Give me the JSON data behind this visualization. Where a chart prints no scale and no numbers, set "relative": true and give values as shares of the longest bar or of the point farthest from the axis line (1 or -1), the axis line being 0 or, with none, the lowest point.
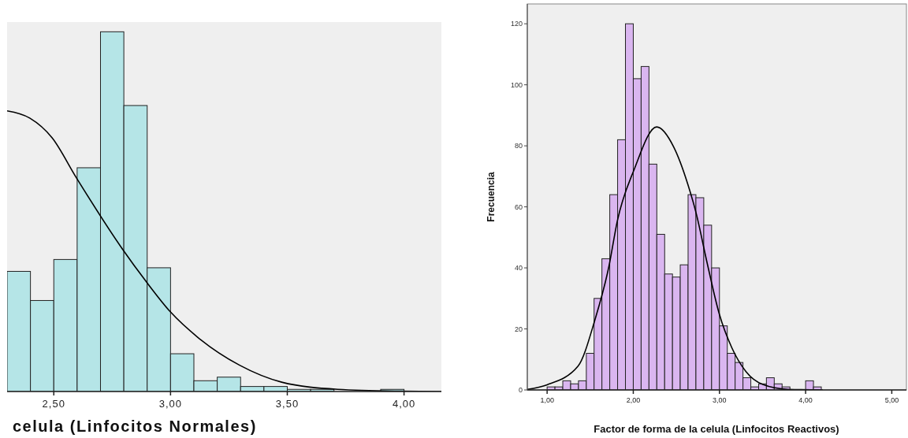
{
  "chart_data": [
    {
      "type": "histogram",
      "relative": true,
      "xlabel": "celula (Linfocitos Normales)",
      "bins": [
        2.3,
        2.4,
        2.5,
        2.6,
        2.7,
        2.8,
        2.9,
        3.0,
        3.1,
        3.2,
        3.3,
        3.4,
        3.5,
        3.6,
        3.7,
        3.8,
        3.9,
        4.0
      ],
      "xlim": [
        2.3,
        4.16
      ],
      "xticks": [
        {
          "value": 2.5,
          "label": "2,50"
        },
        {
          "value": 3.0,
          "label": "3,00"
        },
        {
          "value": 3.5,
          "label": "3,50"
        },
        {
          "value": 4.0,
          "label": "4,00"
        }
      ],
      "tick_labels": "x",
      "series": [
        {
          "color": "#b5e5e7",
          "values": [
            0.334,
            0.253,
            0.367,
            0.622,
            1.0,
            0.795,
            0.344,
            0.105,
            0.03,
            0.04,
            0.014,
            0.014,
            0.006,
            0.006,
            0,
            0,
            0.006
          ]
        },
        {
          "type": "line",
          "color": "#000000",
          "x": [
            2.3,
            2.397,
            2.493,
            2.595,
            2.793,
            2.894,
            3.0,
            3.116,
            3.296,
            3.476,
            3.716,
            3.96,
            4.16
          ],
          "values": [
            0.78,
            0.76,
            0.705,
            0.596,
            0.397,
            0.307,
            0.221,
            0.151,
            0.073,
            0.026,
            0.006,
            0.001,
            0
          ]
        }
      ]
    },
    {
      "type": "histogram",
      "xlabel": "Factor de forma de la celula (Linfocitos Reactivos)",
      "ylabel": "Frecuencia",
      "bins": [
        1,
        1.091,
        1.182,
        1.273,
        1.364,
        1.455,
        1.545,
        1.636,
        1.727,
        1.818,
        1.909,
        2,
        2.091,
        2.182,
        2.273,
        2.364,
        2.455,
        2.545,
        2.636,
        2.727,
        2.818,
        2.909,
        3,
        3.091,
        3.182,
        3.273,
        3.364,
        3.455,
        3.545,
        3.636,
        3.727,
        3.818,
        3.909,
        4,
        4.091,
        4.182
      ],
      "xlim": [
        0.77,
        5.17
      ],
      "xticks": [
        {
          "value": 1,
          "label": "1,00"
        },
        {
          "value": 2,
          "label": "2,00"
        },
        {
          "value": 3,
          "label": "3,00"
        },
        {
          "value": 4,
          "label": "4,00"
        },
        {
          "value": 5,
          "label": "5,00"
        }
      ],
      "ylim": [
        0,
        126.5
      ],
      "yticks": [
        0,
        20,
        40,
        60,
        80,
        100,
        120
      ],
      "series": [
        {
          "color": "#dab6f0",
          "values": [
            1,
            1,
            3,
            2,
            3,
            12,
            30,
            43,
            64,
            82,
            120,
            102,
            106,
            74,
            51,
            38,
            37,
            41,
            64,
            63,
            54,
            40,
            21,
            12,
            9,
            4,
            1,
            2,
            4,
            2,
            1,
            0,
            0,
            3,
            1
          ]
        },
        {
          "type": "line",
          "color": "#000000",
          "x": [
            0.772,
            1.0,
            1.359,
            1.555,
            1.718,
            1.815,
            2.011,
            2.272,
            2.468,
            2.631,
            2.729,
            2.858,
            2.998,
            3.144,
            3.308,
            3.503,
            3.797,
            4.2
          ],
          "values": [
            0.2,
            1.7,
            7.8,
            23,
            40.6,
            55.4,
            72.3,
            86.2,
            79.7,
            67.6,
            58,
            41.5,
            24.9,
            13.8,
            6,
            1.8,
            0.2,
            0
          ]
        }
      ]
    }
  ]
}
